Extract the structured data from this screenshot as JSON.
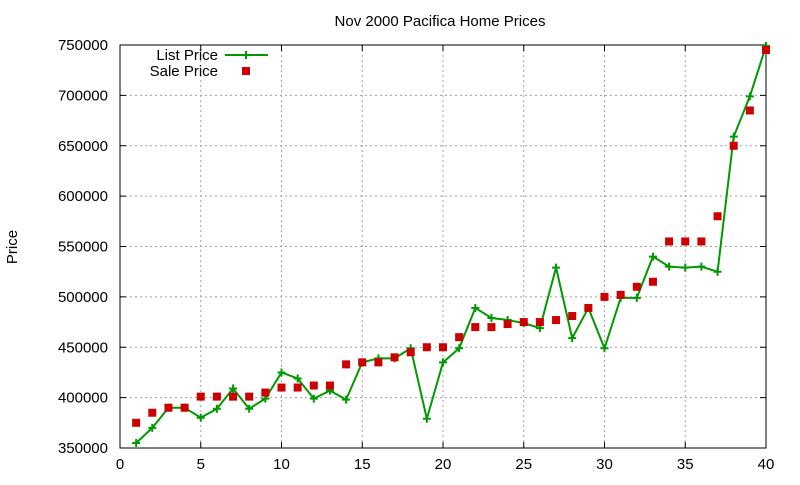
{
  "chart_data": {
    "type": "line",
    "title": "Nov 2000 Pacifica Home Prices",
    "xlabel": "",
    "ylabel": "Price",
    "xlim": [
      0,
      40
    ],
    "ylim": [
      350000,
      750000
    ],
    "x_ticks": [
      0,
      5,
      10,
      15,
      20,
      25,
      30,
      35,
      40
    ],
    "y_ticks": [
      350000,
      400000,
      450000,
      500000,
      550000,
      600000,
      650000,
      700000,
      750000
    ],
    "grid": true,
    "legend_position": "top-left",
    "series": [
      {
        "name": "List Price",
        "style": "lines+markers",
        "marker": "plus",
        "color": "#009900",
        "x": [
          1,
          2,
          3,
          4,
          5,
          6,
          7,
          8,
          9,
          10,
          11,
          12,
          13,
          14,
          15,
          16,
          17,
          18,
          19,
          20,
          21,
          22,
          23,
          24,
          25,
          26,
          27,
          28,
          29,
          30,
          31,
          32,
          33,
          34,
          35,
          36,
          37,
          38,
          39,
          40
        ],
        "values": [
          355000,
          370000,
          390000,
          390000,
          380000,
          389000,
          409000,
          389000,
          399000,
          425000,
          419000,
          399000,
          407000,
          398000,
          435000,
          439000,
          439000,
          449000,
          379000,
          435000,
          449000,
          489000,
          479000,
          477000,
          474000,
          469000,
          529000,
          459000,
          489000,
          449000,
          499000,
          499000,
          540000,
          530000,
          529000,
          530000,
          525000,
          659000,
          699000,
          749000
        ]
      },
      {
        "name": "Sale Price",
        "style": "markers",
        "marker": "square",
        "color": "#cc0000",
        "x": [
          1,
          2,
          3,
          4,
          5,
          6,
          7,
          8,
          9,
          10,
          11,
          12,
          13,
          14,
          15,
          16,
          17,
          18,
          19,
          20,
          21,
          22,
          23,
          24,
          25,
          26,
          27,
          28,
          29,
          30,
          31,
          32,
          33,
          34,
          35,
          36,
          37,
          38,
          39,
          40
        ],
        "values": [
          375000,
          385000,
          390000,
          390000,
          401000,
          401000,
          401000,
          401000,
          405000,
          410000,
          410000,
          412000,
          412000,
          433000,
          435000,
          435000,
          440000,
          445000,
          450000,
          450000,
          460000,
          470000,
          470000,
          473000,
          475000,
          475000,
          477000,
          481000,
          489000,
          500000,
          502000,
          510000,
          515000,
          555000,
          555000,
          555000,
          580000,
          650000,
          685000,
          745000
        ]
      }
    ]
  }
}
